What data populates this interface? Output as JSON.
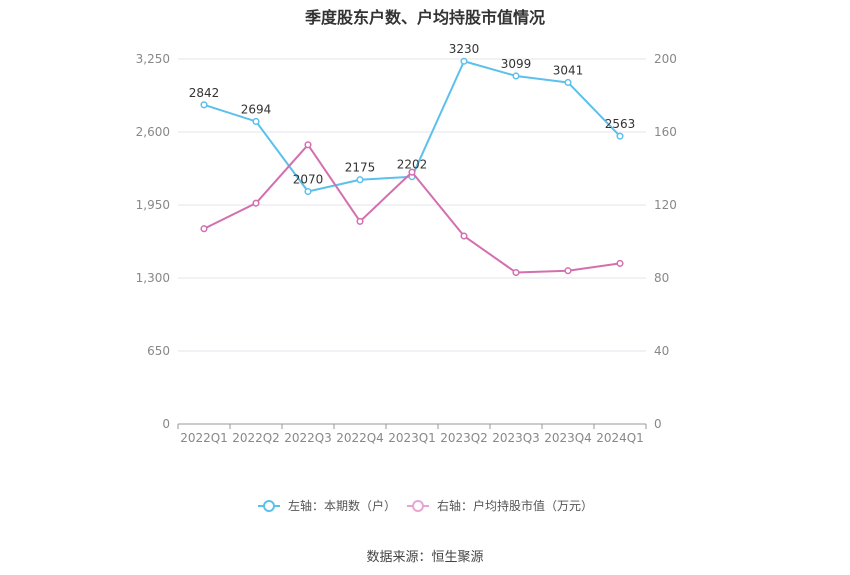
{
  "chart_data": {
    "type": "line",
    "title": "季度股东户数、户均持股市值情况",
    "categories": [
      "2022Q1",
      "2022Q2",
      "2022Q3",
      "2022Q4",
      "2023Q1",
      "2023Q2",
      "2023Q3",
      "2023Q4",
      "2024Q1"
    ],
    "y_left": {
      "ticks": [
        "0",
        "650",
        "1,300",
        "1,950",
        "2,600",
        "3,250"
      ],
      "range": [
        0,
        3250
      ]
    },
    "y_right": {
      "ticks": [
        "0",
        "40",
        "80",
        "120",
        "160",
        "200"
      ],
      "range": [
        0,
        200
      ]
    },
    "series": [
      {
        "name": "左轴：本期数（户）",
        "axis": "left",
        "color": "#5bc0eb",
        "values": [
          2842,
          2694,
          2070,
          2175,
          2202,
          3230,
          3099,
          3041,
          2563
        ],
        "labels": [
          "2842",
          "2694",
          "2070",
          "2175",
          "2202",
          "3230",
          "3099",
          "3041",
          "2563"
        ]
      },
      {
        "name": "右轴：户均持股市值（万元）",
        "axis": "right",
        "color": "#d36fb0",
        "values": [
          107,
          121,
          153,
          111,
          138,
          103,
          83,
          84,
          88
        ]
      }
    ],
    "grid": true,
    "legend_position": "bottom"
  },
  "source": "数据来源：恒生聚源"
}
